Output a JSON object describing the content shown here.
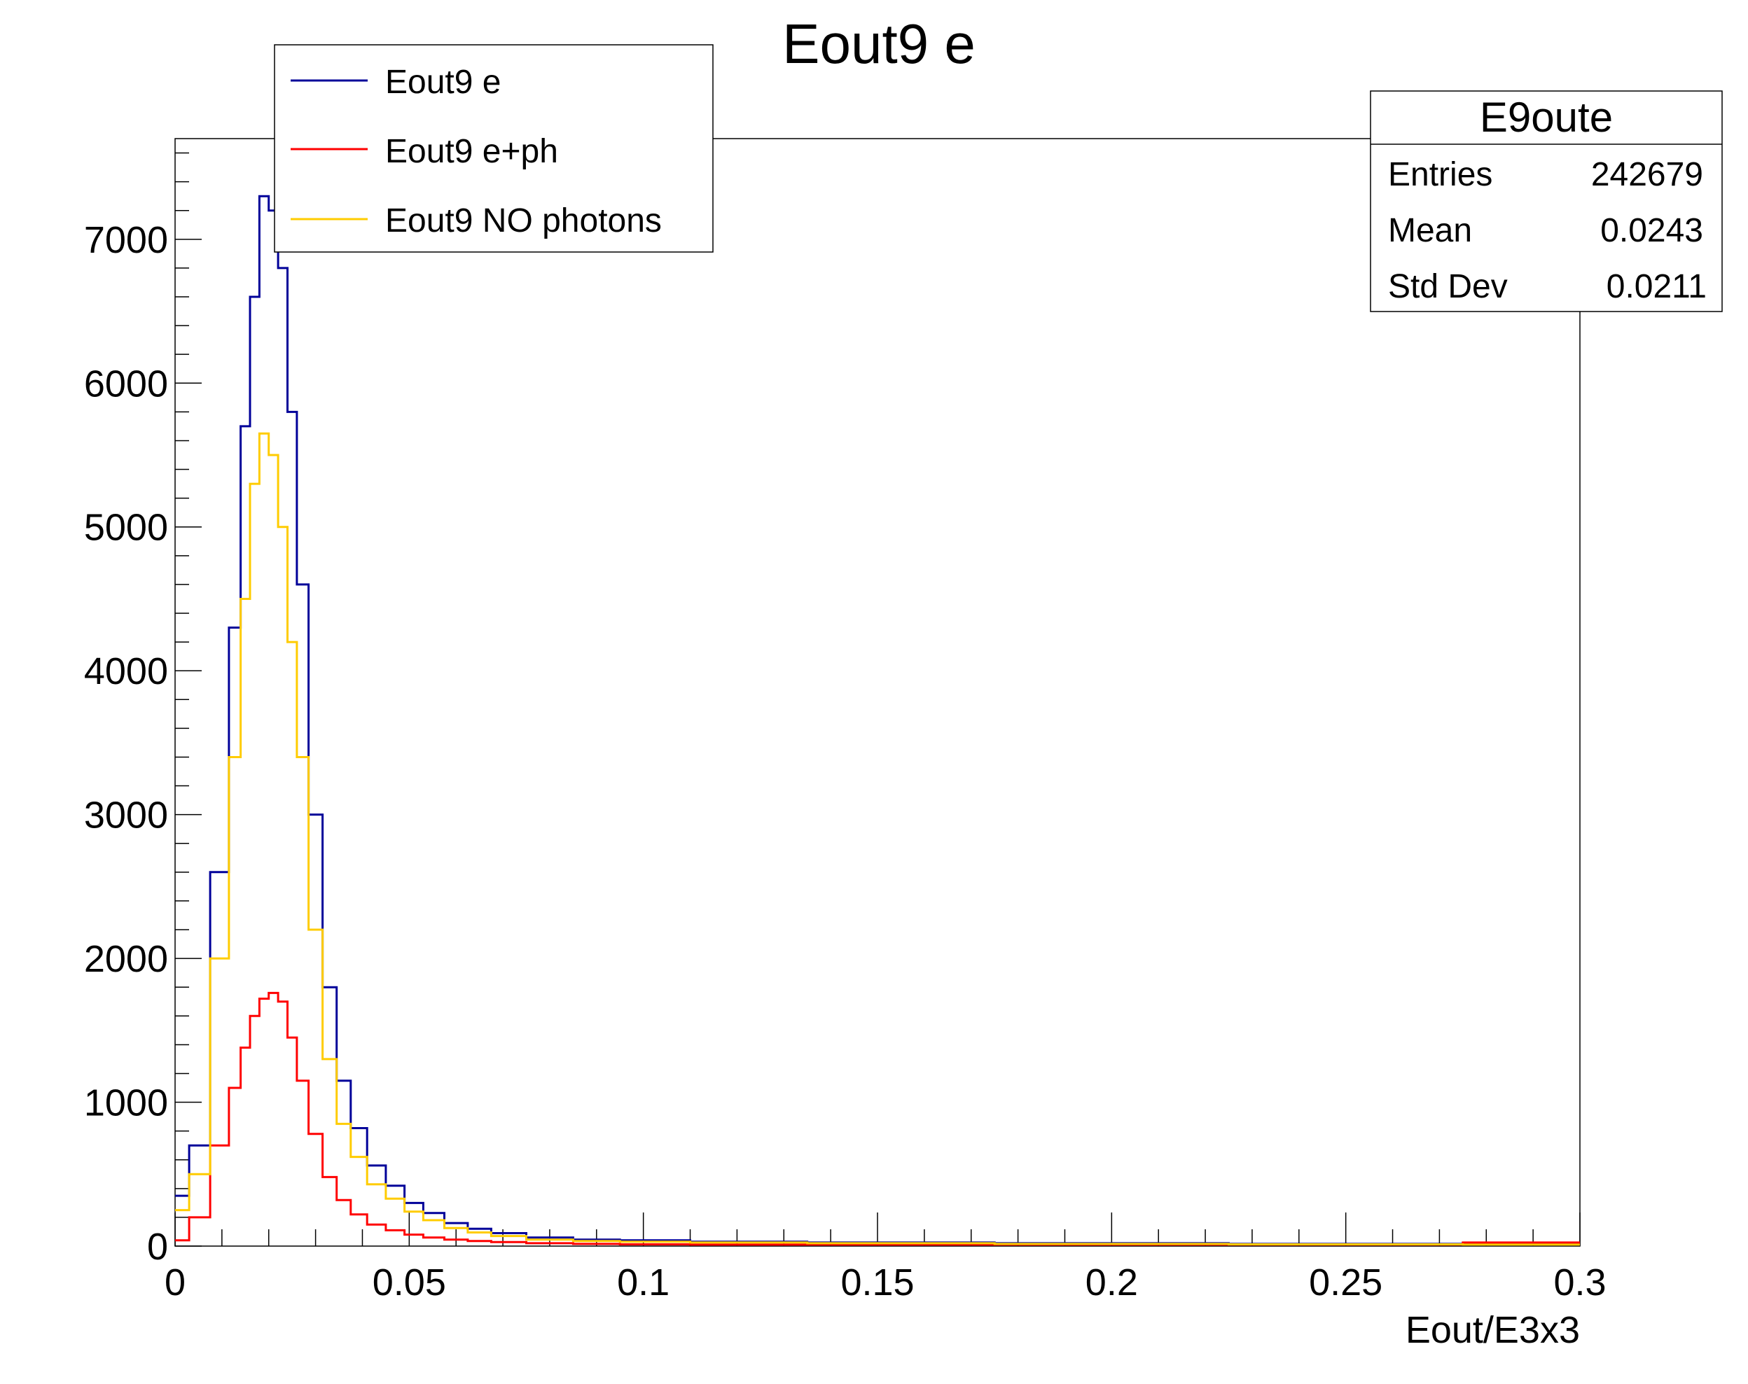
{
  "chart_data": {
    "type": "line",
    "title": "Eout9 e",
    "xlabel": "Eout/E3x3",
    "ylabel": "",
    "xlim": [
      0,
      0.3
    ],
    "ylim": [
      0,
      7700
    ],
    "x_ticks": [
      "0",
      "0.05",
      "0.1",
      "0.15",
      "0.2",
      "0.25",
      "0.3"
    ],
    "y_ticks": [
      "0",
      "1000",
      "2000",
      "3000",
      "4000",
      "5000",
      "6000",
      "7000"
    ],
    "grid": false,
    "legend_position": "top-left",
    "x": [
      0.001,
      0.005,
      0.01,
      0.013,
      0.015,
      0.017,
      0.019,
      0.021,
      0.023,
      0.025,
      0.027,
      0.03,
      0.033,
      0.036,
      0.039,
      0.043,
      0.047,
      0.051,
      0.055,
      0.06,
      0.065,
      0.07,
      0.08,
      0.09,
      0.1,
      0.12,
      0.15,
      0.2,
      0.25,
      0.3
    ],
    "series": [
      {
        "name": "Eout9 e",
        "color": "#000099",
        "values": [
          350,
          700,
          2600,
          4300,
          5700,
          6600,
          7300,
          7200,
          6800,
          5800,
          4600,
          3000,
          1800,
          1150,
          820,
          560,
          420,
          300,
          230,
          160,
          120,
          90,
          60,
          45,
          40,
          30,
          25,
          20,
          15,
          12
        ]
      },
      {
        "name": "Eout9 e+ph",
        "color": "#ff0000",
        "values": [
          40,
          200,
          700,
          1100,
          1380,
          1600,
          1720,
          1760,
          1700,
          1450,
          1150,
          780,
          480,
          320,
          220,
          150,
          110,
          80,
          60,
          45,
          35,
          28,
          20,
          15,
          12,
          10,
          10,
          10,
          10,
          25
        ]
      },
      {
        "name": "Eout9 NO photons",
        "color": "#ffcc00",
        "values": [
          250,
          500,
          2000,
          3400,
          4500,
          5300,
          5650,
          5500,
          5000,
          4200,
          3400,
          2200,
          1300,
          850,
          620,
          430,
          330,
          240,
          180,
          125,
          95,
          70,
          45,
          35,
          30,
          25,
          20,
          15,
          12,
          10
        ]
      }
    ]
  },
  "stats_box": {
    "title": "E9oute",
    "rows": [
      {
        "label": "Entries",
        "value": "242679"
      },
      {
        "label": "Mean",
        "value": "0.0243"
      },
      {
        "label": "Std Dev",
        "value": "0.0211"
      }
    ]
  }
}
